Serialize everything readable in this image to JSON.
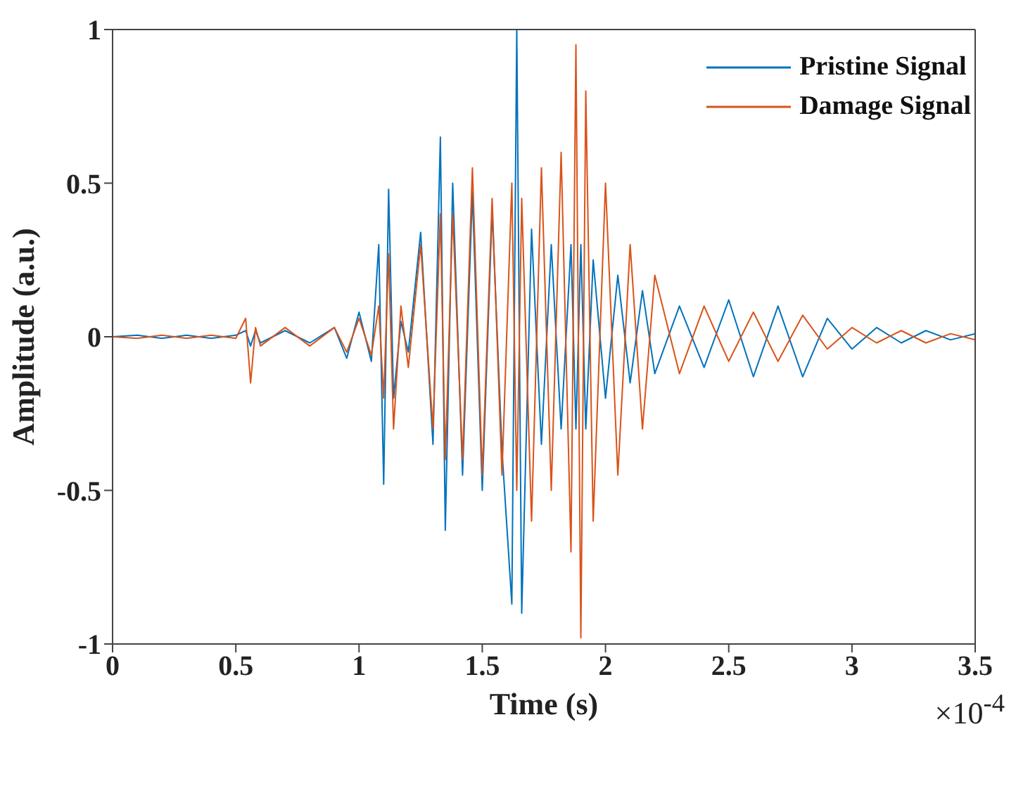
{
  "chart_data": {
    "type": "line",
    "xlabel": "Time (s)",
    "ylabel": "Amplitude (a.u.)",
    "annotations": [
      "×10$^{-4}$"
    ],
    "x": [
      0,
      0.1,
      0.2,
      0.3,
      0.4,
      0.5,
      0.54,
      0.56,
      0.58,
      0.6,
      0.7,
      0.8,
      0.9,
      0.95,
      1.0,
      1.05,
      1.08,
      1.1,
      1.12,
      1.14,
      1.17,
      1.2,
      1.25,
      1.3,
      1.33,
      1.35,
      1.38,
      1.42,
      1.46,
      1.5,
      1.54,
      1.58,
      1.62,
      1.64,
      1.66,
      1.7,
      1.74,
      1.78,
      1.82,
      1.86,
      1.88,
      1.9,
      1.92,
      1.95,
      2.0,
      2.05,
      2.1,
      2.15,
      2.2,
      2.3,
      2.4,
      2.5,
      2.6,
      2.7,
      2.8,
      2.9,
      3.0,
      3.1,
      3.2,
      3.3,
      3.4,
      3.5
    ],
    "series": [
      {
        "name": "Pristine Signal",
        "color": "#0072bd",
        "values": [
          0,
          0.005,
          -0.005,
          0.005,
          -0.005,
          0.005,
          0.02,
          -0.03,
          0.02,
          -0.02,
          0.02,
          -0.02,
          0.03,
          -0.07,
          0.08,
          -0.08,
          0.3,
          -0.48,
          0.48,
          -0.2,
          0.05,
          -0.05,
          0.34,
          -0.35,
          0.65,
          -0.63,
          0.5,
          -0.45,
          0.47,
          -0.5,
          0.41,
          -0.37,
          -0.87,
          1.0,
          -0.9,
          0.35,
          -0.35,
          0.3,
          -0.3,
          0.3,
          -0.3,
          0.3,
          -0.3,
          0.25,
          -0.2,
          0.2,
          -0.15,
          0.15,
          -0.12,
          0.1,
          -0.1,
          0.12,
          -0.13,
          0.1,
          -0.13,
          0.06,
          -0.04,
          0.03,
          -0.02,
          0.02,
          -0.01,
          0.01
        ]
      },
      {
        "name": "Damage Signal",
        "color": "#d95319",
        "values": [
          0,
          -0.005,
          0.005,
          -0.005,
          0.005,
          -0.005,
          0.06,
          -0.15,
          0.03,
          -0.03,
          0.03,
          -0.03,
          0.03,
          -0.05,
          0.06,
          -0.06,
          0.1,
          -0.2,
          0.27,
          -0.3,
          0.1,
          -0.1,
          0.3,
          -0.3,
          0.4,
          -0.4,
          0.4,
          -0.4,
          0.55,
          -0.45,
          0.45,
          -0.45,
          0.5,
          -0.5,
          0.45,
          -0.6,
          0.55,
          -0.5,
          0.6,
          -0.7,
          0.95,
          -0.98,
          0.8,
          -0.6,
          0.5,
          -0.45,
          0.3,
          -0.3,
          0.2,
          -0.12,
          0.1,
          -0.08,
          0.08,
          -0.08,
          0.07,
          -0.04,
          0.03,
          -0.02,
          0.02,
          -0.02,
          0.01,
          -0.01
        ]
      }
    ],
    "xlim": [
      0,
      3.5
    ],
    "xticks": [
      0,
      0.5,
      1,
      1.5,
      2,
      2.5,
      3,
      3.5
    ],
    "ylim": [
      -1,
      1
    ],
    "yticks": [
      -1,
      -0.5,
      0,
      0.5,
      1
    ],
    "grid": false,
    "legend": "top right",
    "marker": "none",
    "line_style": "solid"
  }
}
